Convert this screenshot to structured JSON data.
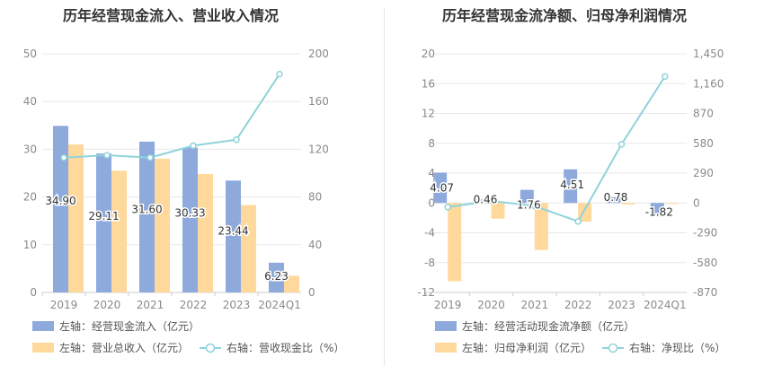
{
  "chart_data": [
    {
      "type": "bar",
      "title": "历年经营现金流入、营业收入情况",
      "categories": [
        "2019",
        "2020",
        "2021",
        "2022",
        "2023",
        "2024Q1"
      ],
      "left_axis": {
        "min": 0,
        "max": 50,
        "ticks": [
          "0",
          "10",
          "20",
          "30",
          "40",
          "50"
        ]
      },
      "right_axis": {
        "min": 0,
        "max": 200,
        "ticks": [
          "0",
          "40",
          "80",
          "120",
          "160",
          "200"
        ]
      },
      "series": [
        {
          "name": "左轴：经营现金流入（亿元）",
          "type": "bar",
          "axis": "left",
          "color": "#8eaadc",
          "values": [
            34.9,
            29.11,
            31.6,
            30.33,
            23.44,
            6.23
          ],
          "labels": [
            "34.90",
            "29.11",
            "31.60",
            "30.33",
            "23.44",
            "6.23"
          ]
        },
        {
          "name": "左轴：营业总收入（亿元）",
          "type": "bar",
          "axis": "left",
          "color": "#ffd99c",
          "values": [
            31.0,
            25.5,
            28.0,
            24.8,
            18.3,
            3.5
          ]
        },
        {
          "name": "右轴：营收现金比（%）",
          "type": "line",
          "axis": "right",
          "color": "#8fd3db",
          "values": [
            113,
            115,
            113,
            123,
            128,
            183
          ]
        }
      ],
      "legend_position": "bottom",
      "grid": true
    },
    {
      "type": "bar",
      "title": "历年经营现金流净额、归母净利润情况",
      "categories": [
        "2019",
        "2020",
        "2021",
        "2022",
        "2023",
        "2024Q1"
      ],
      "left_axis": {
        "min": -12,
        "max": 20,
        "ticks": [
          "-12",
          "-8",
          "-4",
          "0",
          "4",
          "8",
          "12",
          "16",
          "20"
        ]
      },
      "right_axis": {
        "min": -870,
        "max": 1450,
        "ticks": [
          "-870",
          "-580",
          "-290",
          "0",
          "290",
          "580",
          "870",
          "1,160",
          "1,450"
        ]
      },
      "series": [
        {
          "name": "左轴：经营活动现金流净额（亿元）",
          "type": "bar",
          "axis": "left",
          "color": "#8eaadc",
          "values": [
            4.07,
            0.46,
            1.76,
            4.51,
            0.78,
            -1.82
          ],
          "labels": [
            "4.07",
            "0.46",
            "1.76",
            "4.51",
            "0.78",
            "-1.82"
          ]
        },
        {
          "name": "左轴：归母净利润（亿元）",
          "type": "bar",
          "axis": "left",
          "color": "#ffd99c",
          "values": [
            -10.5,
            -2.1,
            -6.3,
            -2.5,
            -0.2,
            -0.1
          ]
        },
        {
          "name": "右轴：净现比（%）",
          "type": "line",
          "axis": "right",
          "color": "#8fd3db",
          "values": [
            -40,
            20,
            -30,
            -180,
            570,
            1230
          ]
        }
      ],
      "legend_position": "bottom",
      "grid": true
    }
  ]
}
